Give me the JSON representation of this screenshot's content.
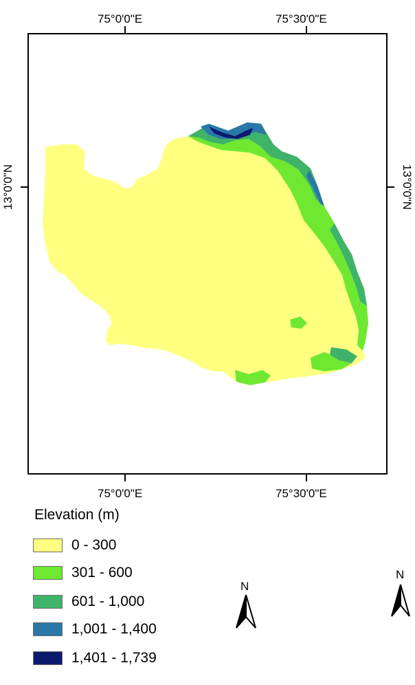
{
  "axes": {
    "top_labels": [
      "75°0'0\"E",
      "75°30'0\"E"
    ],
    "bottom_labels": [
      "75°0'0\"E",
      "75°30'0\"E"
    ],
    "left_label": "13°0'0\"N",
    "right_label": "13°0'0\"N"
  },
  "legend": {
    "title": "Elevation (m)",
    "items": [
      {
        "label": "0 - 300",
        "color": "#ffff80"
      },
      {
        "label": "301 - 600",
        "color": "#6fe832"
      },
      {
        "label": "601 - 1,000",
        "color": "#3fb36a"
      },
      {
        "label": "1,001 - 1,400",
        "color": "#2a77a8"
      },
      {
        "label": "1,401 - 1,739",
        "color": "#0c1a6e"
      }
    ]
  },
  "north_arrows": [
    {
      "letter": "N",
      "icon": "north-arrow-icon"
    },
    {
      "letter": "N",
      "icon": "north-arrow-icon"
    }
  ]
}
